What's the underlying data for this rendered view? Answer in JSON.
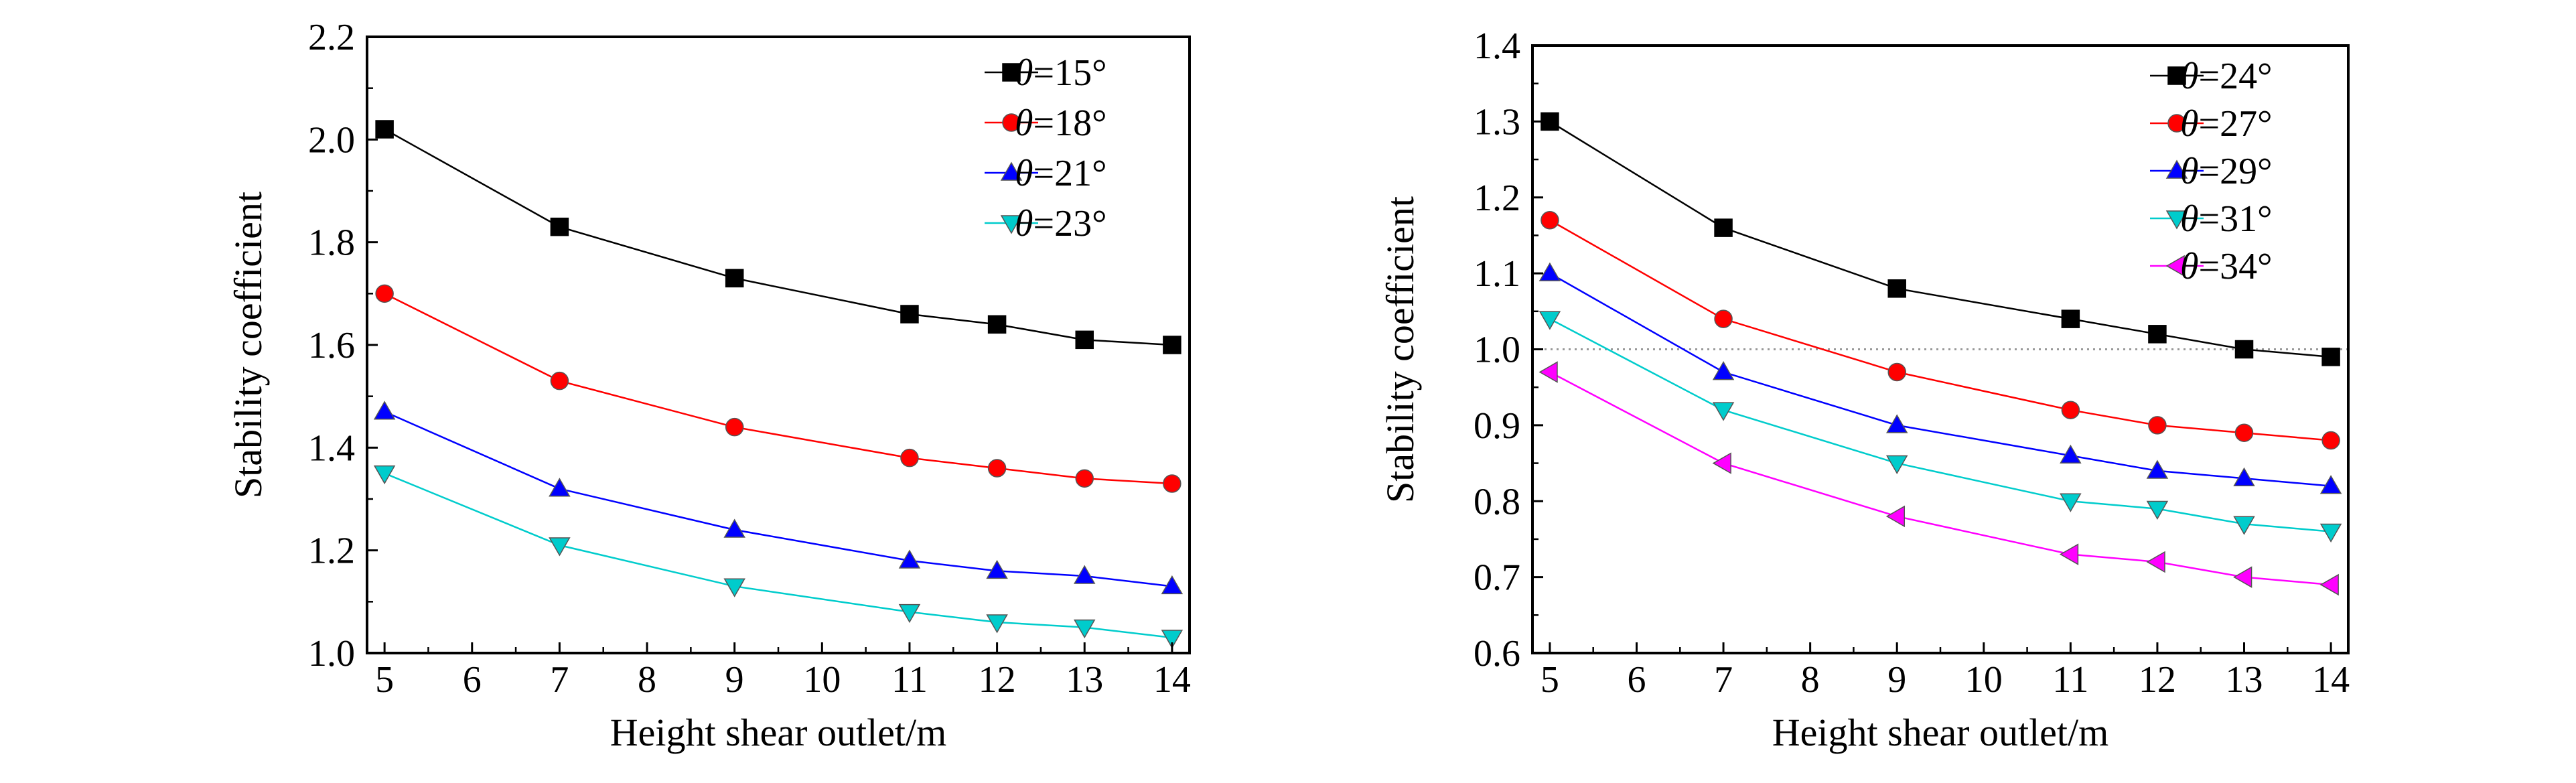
{
  "chart_data": [
    {
      "type": "line",
      "xlabel": "Height shear outlet/m",
      "ylabel": "Stability coefficient",
      "xlim": [
        4.8,
        14.2
      ],
      "ylim": [
        1.0,
        2.2
      ],
      "xticks": [
        5,
        6,
        7,
        8,
        9,
        10,
        11,
        12,
        13,
        14
      ],
      "xtick_labels": [
        "5",
        "6",
        "7",
        "8",
        "9",
        "10",
        "11",
        "12",
        "13",
        "14"
      ],
      "yticks": [
        1.0,
        1.2,
        1.4,
        1.6,
        1.8,
        2.0,
        2.2
      ],
      "ytick_labels": [
        "1.0",
        "1.2",
        "1.4",
        "1.6",
        "1.8",
        "2.0",
        "2.2"
      ],
      "grid": false,
      "legend_position": "top-right",
      "x": [
        5,
        7,
        9,
        11,
        12,
        13,
        14
      ],
      "series": [
        {
          "name": "θ=15°",
          "theta": "θ",
          "rest": "=15°",
          "color": "#000000",
          "marker": "square",
          "values": [
            2.02,
            1.83,
            1.73,
            1.66,
            1.64,
            1.61,
            1.6
          ]
        },
        {
          "name": "θ=18°",
          "theta": "θ",
          "rest": "=18°",
          "color": "#ff0000",
          "marker": "circle",
          "values": [
            1.7,
            1.53,
            1.44,
            1.38,
            1.36,
            1.34,
            1.33
          ]
        },
        {
          "name": "θ=21°",
          "theta": "θ",
          "rest": "=21°",
          "color": "#0000ff",
          "marker": "triangle-up",
          "values": [
            1.47,
            1.32,
            1.24,
            1.18,
            1.16,
            1.15,
            1.13
          ]
        },
        {
          "name": "θ=23°",
          "theta": "θ",
          "rest": "=23°",
          "color": "#00cccc",
          "marker": "triangle-down",
          "values": [
            1.35,
            1.21,
            1.13,
            1.08,
            1.06,
            1.05,
            1.03
          ]
        }
      ]
    },
    {
      "type": "line",
      "xlabel": "Height shear outlet/m",
      "ylabel": "Stability coefficient",
      "xlim": [
        4.8,
        14.2
      ],
      "ylim": [
        0.6,
        1.4
      ],
      "xticks": [
        5,
        6,
        7,
        8,
        9,
        10,
        11,
        12,
        13,
        14
      ],
      "xtick_labels": [
        "5",
        "6",
        "7",
        "8",
        "9",
        "10",
        "11",
        "12",
        "13",
        "14"
      ],
      "yticks": [
        0.6,
        0.7,
        0.8,
        0.9,
        1.0,
        1.1,
        1.2,
        1.3,
        1.4
      ],
      "ytick_labels": [
        "0.6",
        "0.7",
        "0.8",
        "0.9",
        "1.0",
        "1.1",
        "1.2",
        "1.3",
        "1.4"
      ],
      "grid": false,
      "legend_position": "top-right",
      "reference_line": {
        "y": 1.0,
        "style": "dotted",
        "color": "#999999"
      },
      "x": [
        5,
        7,
        9,
        11,
        12,
        13,
        14
      ],
      "series": [
        {
          "name": "θ=24°",
          "theta": "θ",
          "rest": "=24°",
          "color": "#000000",
          "marker": "square",
          "values": [
            1.3,
            1.16,
            1.08,
            1.04,
            1.02,
            1.0,
            0.99
          ]
        },
        {
          "name": "θ=27°",
          "theta": "θ",
          "rest": "=27°",
          "color": "#ff0000",
          "marker": "circle",
          "values": [
            1.17,
            1.04,
            0.97,
            0.92,
            0.9,
            0.89,
            0.88
          ]
        },
        {
          "name": "θ=29°",
          "theta": "θ",
          "rest": "=29°",
          "color": "#0000ff",
          "marker": "triangle-up",
          "values": [
            1.1,
            0.97,
            0.9,
            0.86,
            0.84,
            0.83,
            0.82
          ]
        },
        {
          "name": "θ=31°",
          "theta": "θ",
          "rest": "=31°",
          "color": "#00cccc",
          "marker": "triangle-down",
          "values": [
            1.04,
            0.92,
            0.85,
            0.8,
            0.79,
            0.77,
            0.76
          ]
        },
        {
          "name": "θ=34°",
          "theta": "θ",
          "rest": "=34°",
          "color": "#ff00ff",
          "marker": "triangle-left",
          "values": [
            0.97,
            0.85,
            0.78,
            0.73,
            0.72,
            0.7,
            0.69
          ]
        }
      ]
    }
  ]
}
